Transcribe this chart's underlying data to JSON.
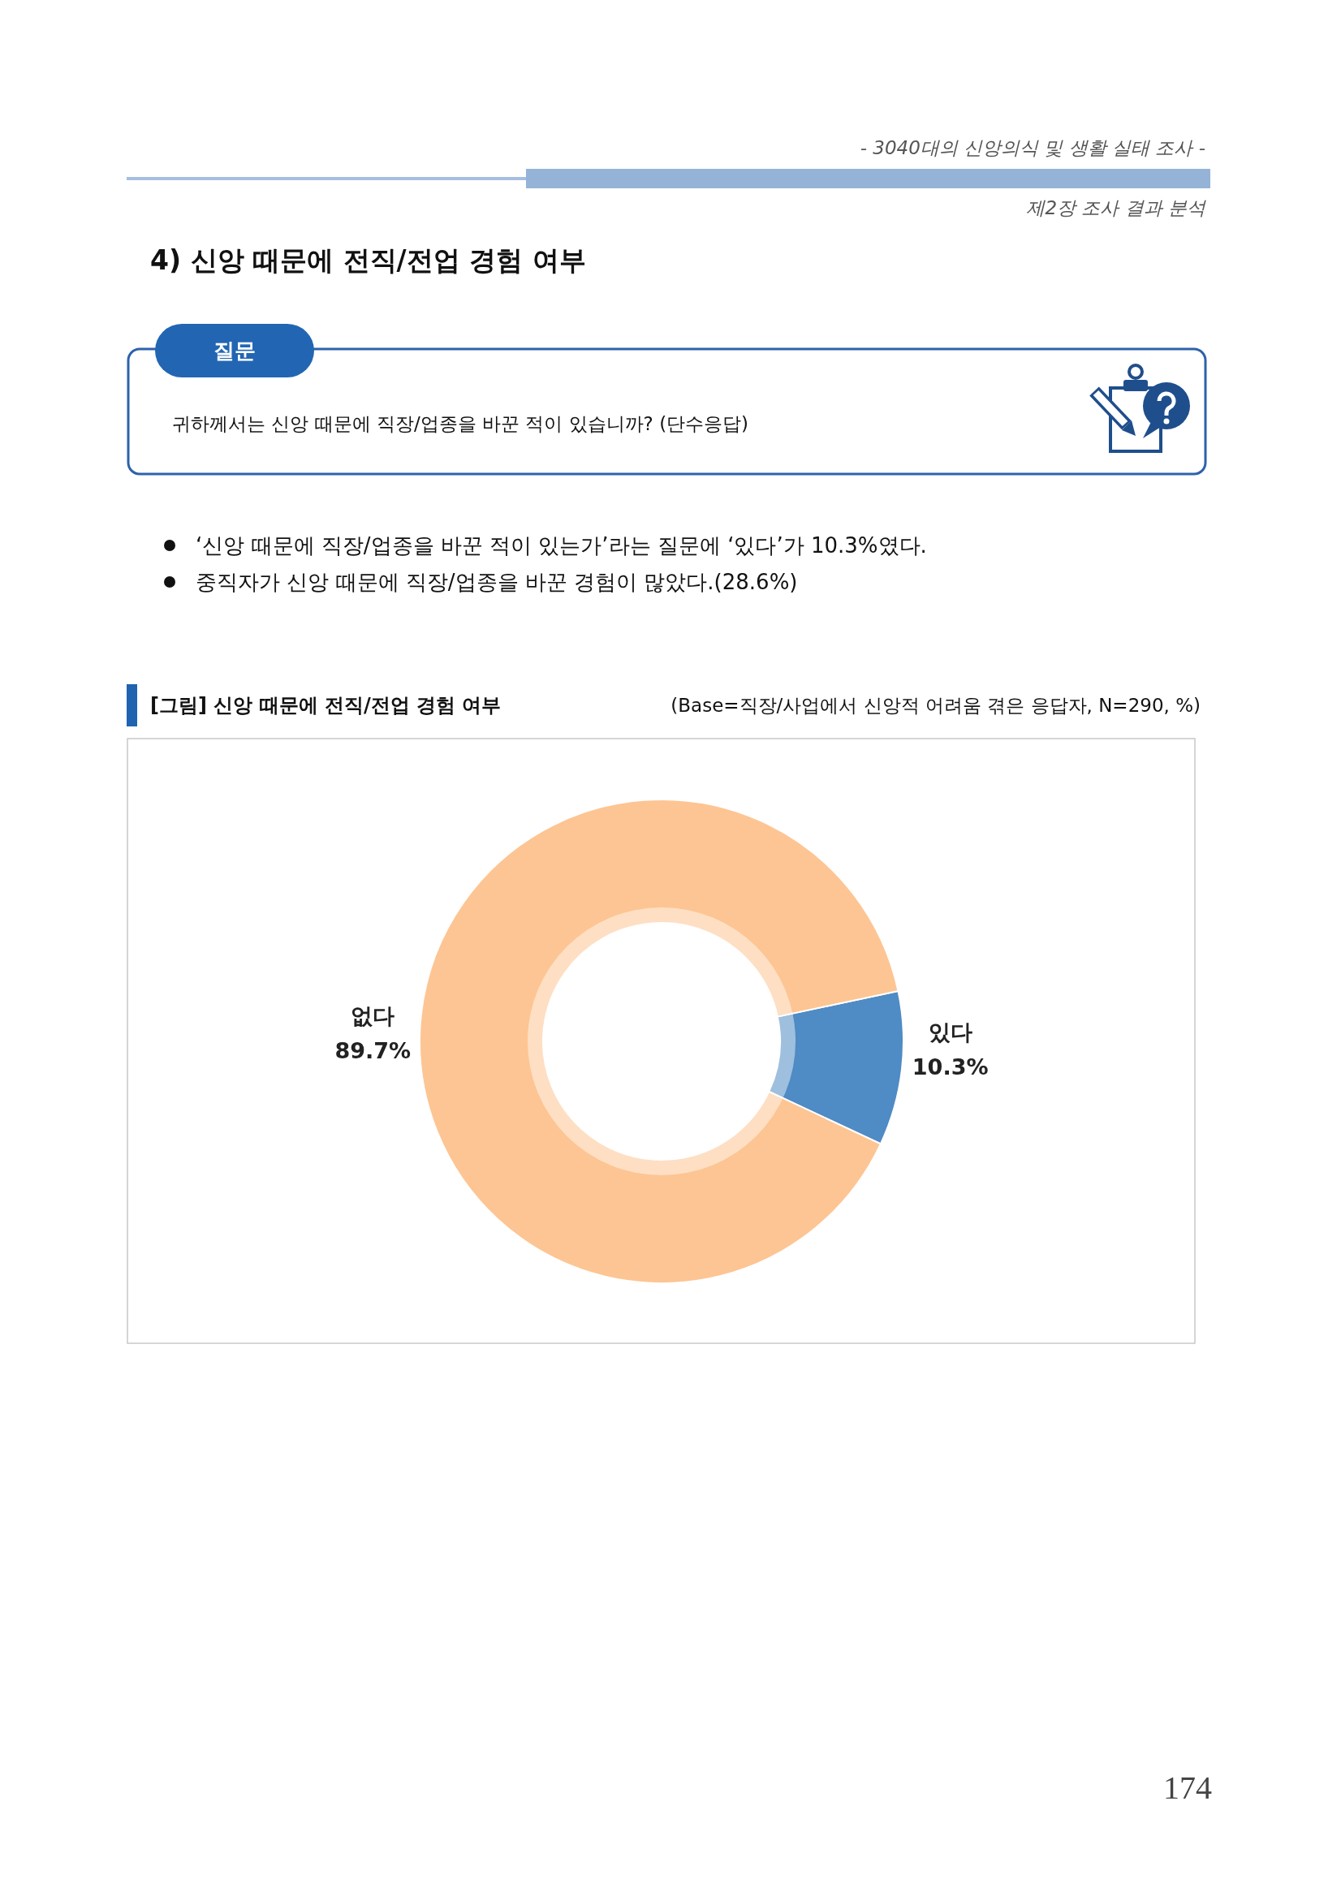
{
  "chart_data": {
    "type": "donut",
    "title": "[그림] 신앙 때문에 전직/전업 경험 여부",
    "subtitle": "(Base=직장/사업에서 신앙적 어려움 겪은 응답자, N=290, %)",
    "categories": [
      "있다",
      "없다"
    ],
    "values": [
      10.3,
      89.7
    ],
    "colors": [
      "#4f8bc4",
      "#fdc593"
    ],
    "value_labels": [
      "10.3%",
      "89.7%"
    ],
    "annotations": [
      "- 3040대의 신앙의식 및 생활 실태 조사 -",
      "제2장 조사 결과 분석",
      "4) 신앙 때문에 전직/전업 경험 여부",
      "질문",
      "귀하께서는 신앙 때문에 직장/업종을 바꾼 적이 있습니까? (단수응답)",
      "‘신앙 때문에 직장/업종을 바꾼 적이 있는가’라는 질문에 ‘있다’가 10.3%였다.",
      "중직자가 신앙 때문에 직장/업종을 바꾼 경험이 많았다.(28.6%)",
      "174"
    ]
  }
}
